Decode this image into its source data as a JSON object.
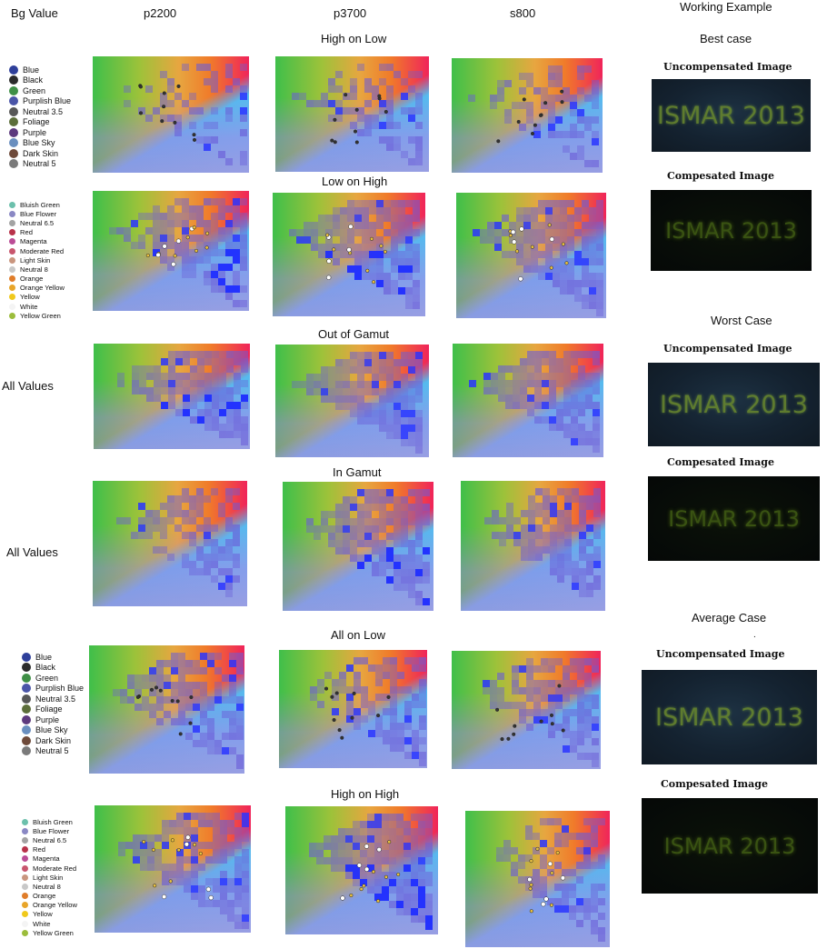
{
  "header": {
    "bg_value": "Bg Value",
    "columns": [
      "p2200",
      "p3700",
      "s800"
    ],
    "working_example": "Working Example"
  },
  "rows": [
    {
      "title": "High on Low",
      "legend": "set1",
      "row_label": ""
    },
    {
      "title": "Low on High",
      "legend": "set2",
      "row_label": ""
    },
    {
      "title": "Out of Gamut",
      "legend": "",
      "row_label": "All Values"
    },
    {
      "title": "In Gamut",
      "legend": "",
      "row_label": "All Values"
    },
    {
      "title": "All on Low",
      "legend": "set1",
      "row_label": ""
    },
    {
      "title": "High on High",
      "legend": "set2",
      "row_label": ""
    }
  ],
  "legend_set1": [
    {
      "label": "Blue",
      "color": "#2e3f9a"
    },
    {
      "label": "Black",
      "color": "#2b2b2b"
    },
    {
      "label": "Green",
      "color": "#3f8f46"
    },
    {
      "label": "Purplish Blue",
      "color": "#4a55a8"
    },
    {
      "label": "Neutral 3.5",
      "color": "#575757"
    },
    {
      "label": "Foliage",
      "color": "#5c6e3a"
    },
    {
      "label": "Purple",
      "color": "#5d3a7e"
    },
    {
      "label": "Blue Sky",
      "color": "#6a8fbf"
    },
    {
      "label": "Dark Skin",
      "color": "#6e4a3a"
    },
    {
      "label": "Neutral 5",
      "color": "#7a7a7a"
    }
  ],
  "legend_set2": [
    {
      "label": "Bluish Green",
      "color": "#6cc0ac"
    },
    {
      "label": "Blue Flower",
      "color": "#8a88c4"
    },
    {
      "label": "Neutral 6.5",
      "color": "#a3a3a3"
    },
    {
      "label": "Red",
      "color": "#b8324a"
    },
    {
      "label": "Magenta",
      "color": "#bb4d96"
    },
    {
      "label": "Moderate Red",
      "color": "#c8566e"
    },
    {
      "label": "Light Skin",
      "color": "#c9967f"
    },
    {
      "label": "Neutral 8",
      "color": "#c8c8c8"
    },
    {
      "label": "Orange",
      "color": "#e07d2a"
    },
    {
      "label": "Orange Yellow",
      "color": "#e8a52a"
    },
    {
      "label": "Yellow",
      "color": "#f0c91c"
    },
    {
      "label": "White",
      "color": "#f4f4f4"
    },
    {
      "label": "Yellow Green",
      "color": "#9cbd3c"
    }
  ],
  "examples": {
    "best_case": "Best case",
    "worst_case": "Worst Case",
    "average_case": "Average Case",
    "average_dot": ".",
    "uncompensated_label": "Uncompensated Image",
    "compensated_label": "Compesated Image",
    "image_text": "ISMAR 2013"
  },
  "colors": {
    "uncomp_bg": "#101a24",
    "uncomp_text": "#6b8a2e",
    "comp_bg": "#050807",
    "comp_text": "#3f5a14",
    "marker_blue": "#1f2cff"
  }
}
